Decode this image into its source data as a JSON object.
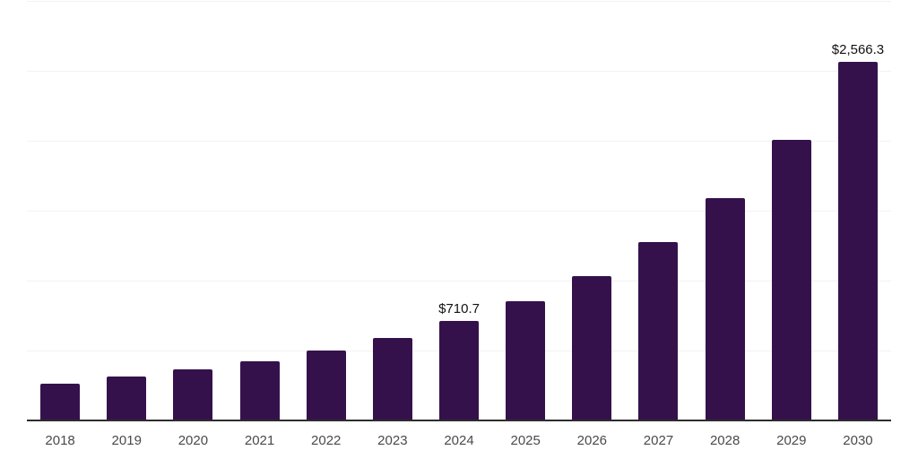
{
  "chart_data": {
    "type": "bar",
    "categories": [
      "2018",
      "2019",
      "2020",
      "2021",
      "2022",
      "2023",
      "2024",
      "2025",
      "2026",
      "2027",
      "2028",
      "2029",
      "2030"
    ],
    "values": [
      265,
      312,
      365,
      423,
      497,
      587,
      710.7,
      850,
      1032,
      1275,
      1588,
      2005,
      2566.3
    ],
    "value_labels": [
      "",
      "",
      "",
      "",
      "",
      "",
      "$710.7",
      "",
      "",
      "",
      "",
      "",
      "$2,566.3"
    ],
    "title": "",
    "xlabel": "",
    "ylabel": "",
    "ylim": [
      0,
      3000
    ],
    "grid": true,
    "gridline_values": [
      500,
      1000,
      1500,
      2000,
      2500,
      3000
    ],
    "legend_position": "none",
    "colors": {
      "bar": "#35114C",
      "axis_line": "#2d2d2d",
      "gridline": "#f2f2f2",
      "tick_label": "#4a4a4a",
      "data_label": "#111111",
      "background": "#ffffff"
    }
  }
}
